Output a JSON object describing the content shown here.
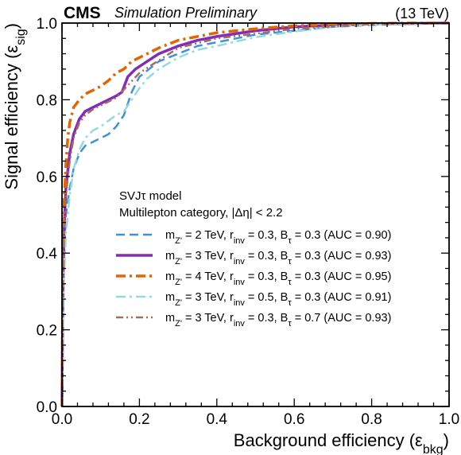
{
  "header": {
    "experiment": "CMS",
    "status": "Simulation Preliminary",
    "energy": "(13 TeV)"
  },
  "chart_data": {
    "type": "line",
    "xlabel": "Background efficiency (ε",
    "xlabel_sub": "bkg",
    "ylabel": "Signal efficiency (ε",
    "ylabel_sub": "sig",
    "xlim": [
      0.0,
      1.0
    ],
    "ylim": [
      0.0,
      1.0
    ],
    "x_ticks": [
      "0.0",
      "0.2",
      "0.4",
      "0.6",
      "0.8",
      "1.0"
    ],
    "y_ticks": [
      "0.0",
      "0.2",
      "0.4",
      "0.6",
      "0.8",
      "1.0"
    ],
    "legend_title_1": "SVJτ model",
    "legend_title_2": "Multilepton category, |Δη| < 2.2",
    "legend_placement": "center-right",
    "grid": false,
    "series": [
      {
        "name": "m_Z' = 2 TeV, r_inv = 0.3, B_τ = 0.3 (AUC = 0.90)",
        "label_parts": [
          "2",
          "0.3",
          "0.3",
          "0.90"
        ],
        "color": "#3f90da",
        "style": "dashed",
        "width": 2.5,
        "x": [
          0.0,
          0.002,
          0.005,
          0.01,
          0.02,
          0.03,
          0.045,
          0.06,
          0.08,
          0.1,
          0.12,
          0.14,
          0.16,
          0.18,
          0.2,
          0.25,
          0.3,
          0.35,
          0.4,
          0.5,
          0.6,
          0.7,
          0.8,
          0.9,
          1.0
        ],
        "y": [
          0.0,
          0.22,
          0.38,
          0.5,
          0.57,
          0.62,
          0.66,
          0.68,
          0.69,
          0.7,
          0.71,
          0.73,
          0.76,
          0.82,
          0.86,
          0.9,
          0.92,
          0.94,
          0.95,
          0.97,
          0.98,
          0.99,
          0.995,
          0.998,
          1.0
        ]
      },
      {
        "name": "m_Z' = 3 TeV, r_inv = 0.3, B_τ = 0.3 (AUC = 0.93)",
        "label_parts": [
          "3",
          "0.3",
          "0.3",
          "0.93"
        ],
        "color": "#832db6",
        "style": "solid",
        "width": 3.5,
        "x": [
          0.0,
          0.002,
          0.005,
          0.01,
          0.02,
          0.03,
          0.045,
          0.06,
          0.08,
          0.1,
          0.12,
          0.14,
          0.155,
          0.17,
          0.19,
          0.22,
          0.25,
          0.3,
          0.35,
          0.4,
          0.5,
          0.6,
          0.7,
          0.8,
          0.9,
          1.0
        ],
        "y": [
          0.0,
          0.28,
          0.45,
          0.57,
          0.66,
          0.71,
          0.75,
          0.77,
          0.78,
          0.79,
          0.8,
          0.81,
          0.82,
          0.86,
          0.88,
          0.9,
          0.92,
          0.94,
          0.955,
          0.965,
          0.98,
          0.99,
          0.995,
          0.998,
          0.999,
          1.0
        ]
      },
      {
        "name": "m_Z' = 4 TeV, r_inv = 0.3, B_τ = 0.3 (AUC = 0.95)",
        "label_parts": [
          "4",
          "0.3",
          "0.3",
          "0.95"
        ],
        "color": "#e76300",
        "style": "dashdot",
        "width": 3.5,
        "x": [
          0.0,
          0.002,
          0.005,
          0.01,
          0.015,
          0.02,
          0.03,
          0.045,
          0.06,
          0.08,
          0.1,
          0.12,
          0.14,
          0.16,
          0.18,
          0.2,
          0.25,
          0.3,
          0.35,
          0.4,
          0.5,
          0.6,
          0.7,
          0.8,
          0.9,
          1.0
        ],
        "y": [
          0.0,
          0.35,
          0.52,
          0.63,
          0.7,
          0.74,
          0.78,
          0.8,
          0.815,
          0.825,
          0.835,
          0.85,
          0.87,
          0.88,
          0.9,
          0.91,
          0.935,
          0.955,
          0.965,
          0.975,
          0.985,
          0.993,
          0.997,
          0.999,
          1.0,
          1.0
        ]
      },
      {
        "name": "m_Z' = 3 TeV, r_inv = 0.5, B_τ = 0.3 (AUC = 0.91)",
        "label_parts": [
          "3",
          "0.5",
          "0.3",
          "0.91"
        ],
        "color": "#92dadd",
        "style": "dashdot",
        "width": 2.5,
        "x": [
          0.0,
          0.002,
          0.005,
          0.01,
          0.02,
          0.03,
          0.045,
          0.06,
          0.08,
          0.1,
          0.12,
          0.14,
          0.16,
          0.18,
          0.2,
          0.22,
          0.25,
          0.3,
          0.35,
          0.4,
          0.45,
          0.5,
          0.6,
          0.7,
          0.8,
          0.9,
          1.0
        ],
        "y": [
          0.0,
          0.2,
          0.33,
          0.45,
          0.55,
          0.62,
          0.67,
          0.7,
          0.72,
          0.73,
          0.745,
          0.76,
          0.77,
          0.8,
          0.83,
          0.855,
          0.88,
          0.91,
          0.93,
          0.94,
          0.952,
          0.963,
          0.978,
          0.99,
          0.996,
          0.999,
          1.0
        ]
      },
      {
        "name": "m_Z' = 3 TeV, r_inv = 0.3, B_τ = 0.7 (AUC = 0.93)",
        "label_parts": [
          "3",
          "0.3",
          "0.7",
          "0.93"
        ],
        "color": "#a96b59",
        "style": "dashdotdot",
        "width": 2.5,
        "x": [
          0.0,
          0.002,
          0.005,
          0.01,
          0.02,
          0.03,
          0.045,
          0.06,
          0.08,
          0.1,
          0.14,
          0.2,
          0.3,
          0.4,
          0.6,
          0.8,
          1.0
        ],
        "y": [
          0.0,
          0.26,
          0.43,
          0.55,
          0.64,
          0.7,
          0.74,
          0.76,
          0.775,
          0.785,
          0.805,
          0.87,
          0.935,
          0.96,
          0.985,
          0.997,
          1.0
        ]
      }
    ]
  }
}
